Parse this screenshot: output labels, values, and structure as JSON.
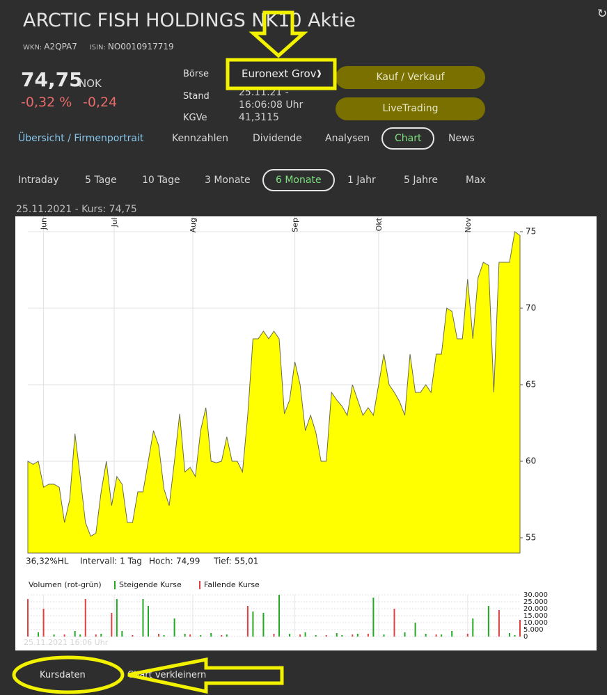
{
  "header": {
    "title": "ARCTIC FISH HOLDINGS NK10 Aktie",
    "wkn_label": "WKN:",
    "wkn": "A2QPA7",
    "isin_label": "ISIN:",
    "isin": "NO0010917719"
  },
  "quote": {
    "price": "74,75",
    "currency": "NOK",
    "change_pct": "-0,32 %",
    "change_abs": "-0,24"
  },
  "details": [
    {
      "label": "Börse",
      "value": "Euronext Grov"
    },
    {
      "label": "Stand",
      "value": "25.11.21 - 16:06:08 Uhr"
    },
    {
      "label": "KGVe",
      "value": "41,3115"
    }
  ],
  "buttons": [
    "Kauf / Verkauf",
    "LiveTrading"
  ],
  "tabs": {
    "items": [
      "Übersicht / Firmenportrait",
      "Kennzahlen",
      "Dividende",
      "Analysen",
      "Chart",
      "News"
    ],
    "active": 4
  },
  "ranges": {
    "items": [
      "Intraday",
      "5 Tage",
      "10 Tage",
      "3 Monate",
      "6 Monate",
      "1 Jahr",
      "5 Jahre",
      "Max"
    ],
    "active": 4
  },
  "chart_caption": "25.11.2021  -  Kurs: 74,75",
  "chart_data": [
    {
      "type": "area",
      "color": "#ffff00",
      "line_color": "#6b6b50",
      "values": [
        60.0,
        59.8,
        60.0,
        58.3,
        58.5,
        58.5,
        58.3,
        56.0,
        57.5,
        61.8,
        59.0,
        56.0,
        55.1,
        55.3,
        58.0,
        60.0,
        57.1,
        59.0,
        58.5,
        56.0,
        56.0,
        58.0,
        58.0,
        60.0,
        62.0,
        61.0,
        58.2,
        57.1,
        60.0,
        63.1,
        59.3,
        59.6,
        59.0,
        62.0,
        63.5,
        60.0,
        59.9,
        60.0,
        61.6,
        60.0,
        60.0,
        59.3,
        63.0,
        68.0,
        68.0,
        68.5,
        68.0,
        68.5,
        68.0,
        63.1,
        64.0,
        66.5,
        65.0,
        62.0,
        63.0,
        61.9,
        60.0,
        60.0,
        64.5,
        64.0,
        63.6,
        63.0,
        65.0,
        64.0,
        63.0,
        63.5,
        63.0,
        65.0,
        67.0,
        65.0,
        64.5,
        63.9,
        63.0,
        67.0,
        64.5,
        64.5,
        65.0,
        64.5,
        67.0,
        67.0,
        70.0,
        69.8,
        68.0,
        68.0,
        71.9,
        68.0,
        72.0,
        73.0,
        72.8,
        64.5,
        73.0,
        73.0,
        73.0,
        75.0,
        74.75
      ],
      "ylim": [
        54,
        76
      ],
      "yticks": [
        55,
        60,
        65,
        70,
        75
      ],
      "xticks": [
        {
          "value": 3,
          "label": "Jun"
        },
        {
          "value": 16.5,
          "label": "Jul"
        },
        {
          "value": 31.5,
          "label": "Aug"
        },
        {
          "value": 51,
          "label": "Sep"
        },
        {
          "value": 67,
          "label": "Okt"
        },
        {
          "value": 84,
          "label": "Nov"
        }
      ],
      "grid": true,
      "stats": [
        "36,32%HL",
        "Intervall: 1 Tag",
        "Hoch:",
        "74,99",
        "Tief:",
        "55,01"
      ]
    },
    {
      "type": "bar",
      "legend_title": "Volumen (rot-grün)",
      "timestamp": "25.11.2021 16:06 Uhr",
      "series": [
        {
          "name": "Steigende Kurse",
          "color": "#22aa22",
          "values": [
            null,
            null,
            3000,
            null,
            null,
            1500,
            null,
            null,
            null,
            4000,
            1500,
            null,
            null,
            null,
            2000,
            null,
            null,
            27000,
            4000,
            null,
            null,
            null,
            27000,
            22000,
            null,
            null,
            1000,
            null,
            13000,
            null,
            2000,
            null,
            null,
            1000,
            null,
            2500,
            null,
            null,
            1500,
            null,
            null,
            null,
            null,
            18000,
            null,
            17000,
            null,
            null,
            30000,
            null,
            2000,
            null,
            null,
            3000,
            null,
            1000,
            null,
            null,
            null,
            2500,
            1000,
            null,
            null,
            2000,
            null,
            null,
            28000,
            null,
            1500,
            null,
            null,
            null,
            3000,
            null,
            10000,
            null,
            2000,
            null,
            null,
            1500,
            null,
            4000,
            null,
            null,
            null,
            13000,
            null,
            null,
            22000,
            null,
            null,
            null,
            2500,
            1000,
            null
          ]
        },
        {
          "name": "Fallende Kurse",
          "color": "#e04040",
          "values": [
            27000,
            null,
            null,
            20000,
            null,
            null,
            null,
            1500,
            null,
            null,
            null,
            27000,
            null,
            1500,
            null,
            null,
            17000,
            null,
            null,
            null,
            1000,
            null,
            null,
            null,
            null,
            2000,
            null,
            null,
            null,
            null,
            null,
            1500,
            null,
            null,
            null,
            null,
            null,
            1000,
            null,
            null,
            null,
            null,
            22000,
            null,
            null,
            null,
            null,
            2000,
            null,
            null,
            null,
            null,
            1500,
            null,
            null,
            null,
            null,
            1000,
            null,
            null,
            null,
            null,
            1500,
            null,
            null,
            2000,
            null,
            null,
            null,
            null,
            20000,
            null,
            null,
            null,
            null,
            null,
            null,
            null,
            1500,
            null,
            null,
            null,
            null,
            null,
            2000,
            null,
            null,
            null,
            null,
            null,
            19000,
            null,
            null,
            null,
            12000
          ]
        }
      ],
      "ylim": [
        0,
        30000
      ],
      "yticks": [
        0,
        {
          "value": 5000,
          "label": "5.000"
        },
        {
          "value": 10000,
          "label": "10.000"
        },
        {
          "value": 15000,
          "label": "15.000"
        },
        {
          "value": 20000,
          "label": "20.000"
        },
        {
          "value": 25000,
          "label": "25.000"
        },
        {
          "value": 30000,
          "label": "30.000"
        }
      ],
      "grid": true
    }
  ],
  "footer": [
    "Kursdaten",
    "Chart verkleinern"
  ]
}
